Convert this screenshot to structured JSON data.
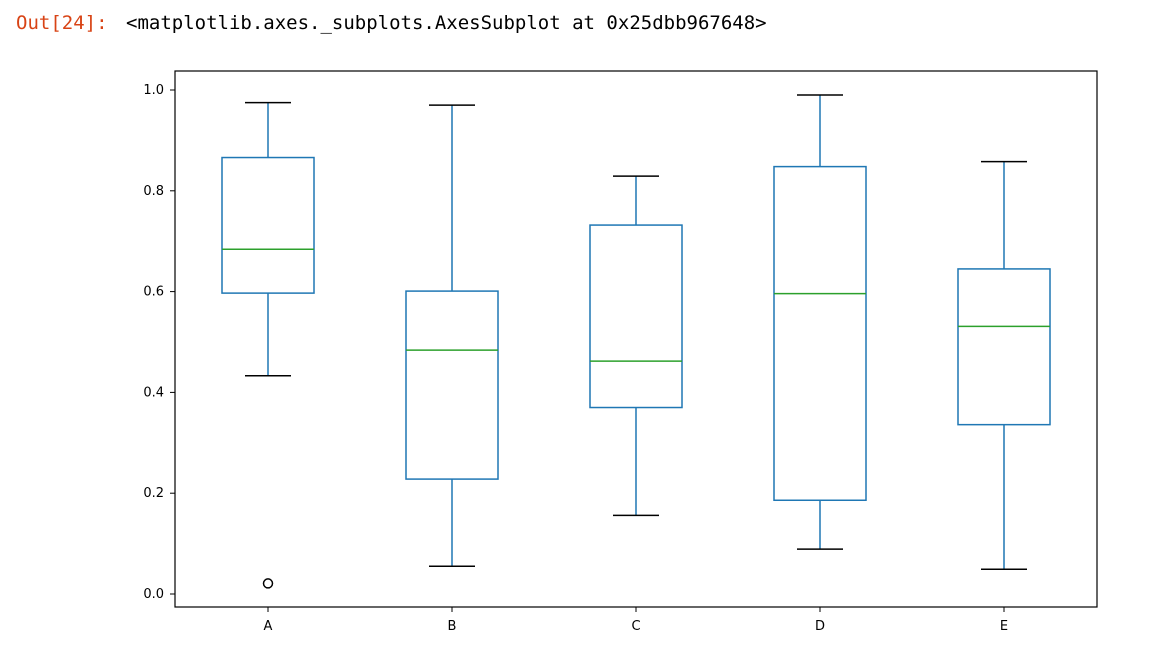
{
  "cell": {
    "prompt": "Out[24]:",
    "output_text": "<matplotlib.axes._subplots.AxesSubplot at 0x25dbb967648>"
  },
  "colors": {
    "box": "#1f77b4",
    "median": "#2ca02c",
    "whisker": "#1f77b4",
    "cap": "#000000",
    "outlier": "#000000",
    "prompt": "#d84315"
  },
  "chart_data": {
    "type": "box",
    "title": "",
    "xlabel": "",
    "ylabel": "",
    "categories": [
      "A",
      "B",
      "C",
      "D",
      "E"
    ],
    "ylim": [
      -0.03,
      1.035
    ],
    "yticks": [
      0.0,
      0.2,
      0.4,
      0.6,
      0.8,
      1.0
    ],
    "ytick_labels": [
      "0.0",
      "0.2",
      "0.4",
      "0.6",
      "0.8",
      "1.0"
    ],
    "grid": false,
    "legend": "none",
    "boxes": [
      {
        "name": "A",
        "whislo": 0.433,
        "q1": 0.597,
        "med": 0.684,
        "q3": 0.866,
        "whishi": 0.975,
        "fliers": [
          0.021
        ]
      },
      {
        "name": "B",
        "whislo": 0.055,
        "q1": 0.228,
        "med": 0.484,
        "q3": 0.601,
        "whishi": 0.97,
        "fliers": []
      },
      {
        "name": "C",
        "whislo": 0.156,
        "q1": 0.37,
        "med": 0.462,
        "q3": 0.732,
        "whishi": 0.829,
        "fliers": []
      },
      {
        "name": "D",
        "whislo": 0.089,
        "q1": 0.186,
        "med": 0.596,
        "q3": 0.848,
        "whishi": 0.99,
        "fliers": []
      },
      {
        "name": "E",
        "whislo": 0.049,
        "q1": 0.336,
        "med": 0.531,
        "q3": 0.645,
        "whishi": 0.858,
        "fliers": []
      }
    ]
  }
}
